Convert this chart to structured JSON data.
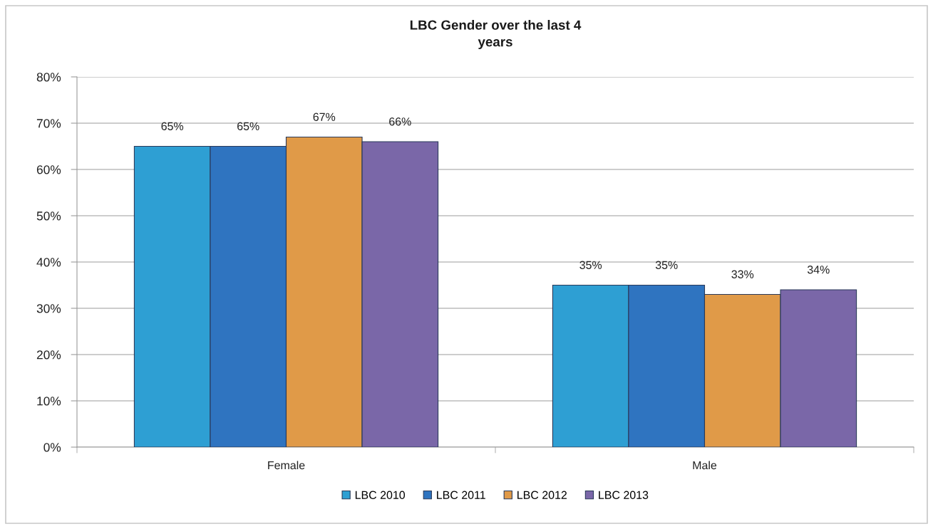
{
  "chart_data": {
    "type": "bar",
    "title": "LBC Gender over the last 4\nyears",
    "categories": [
      "Female",
      "Male"
    ],
    "series": [
      {
        "name": "LBC 2010",
        "color": "#2e9fd3",
        "values": [
          65,
          35
        ],
        "value_labels": [
          "65%",
          "35%"
        ]
      },
      {
        "name": "LBC 2011",
        "color": "#2f74c0",
        "values": [
          65,
          35
        ],
        "value_labels": [
          "65%",
          "35%"
        ]
      },
      {
        "name": "LBC 2012",
        "color": "#e09a48",
        "values": [
          67,
          33
        ],
        "value_labels": [
          "67%",
          "33%"
        ]
      },
      {
        "name": "LBC 2013",
        "color": "#7a67a8",
        "values": [
          66,
          34
        ],
        "value_labels": [
          "66%",
          "34%"
        ]
      }
    ],
    "ylim": [
      0,
      80
    ],
    "yticks": [
      {
        "value": 0,
        "label": "0%"
      },
      {
        "value": 10,
        "label": "10%"
      },
      {
        "value": 20,
        "label": "20%"
      },
      {
        "value": 30,
        "label": "30%"
      },
      {
        "value": 40,
        "label": "40%"
      },
      {
        "value": 50,
        "label": "50%"
      },
      {
        "value": 60,
        "label": "60%"
      },
      {
        "value": 70,
        "label": "70%"
      },
      {
        "value": 80,
        "label": "80%"
      }
    ],
    "grid": "y",
    "legend": "bottom"
  }
}
